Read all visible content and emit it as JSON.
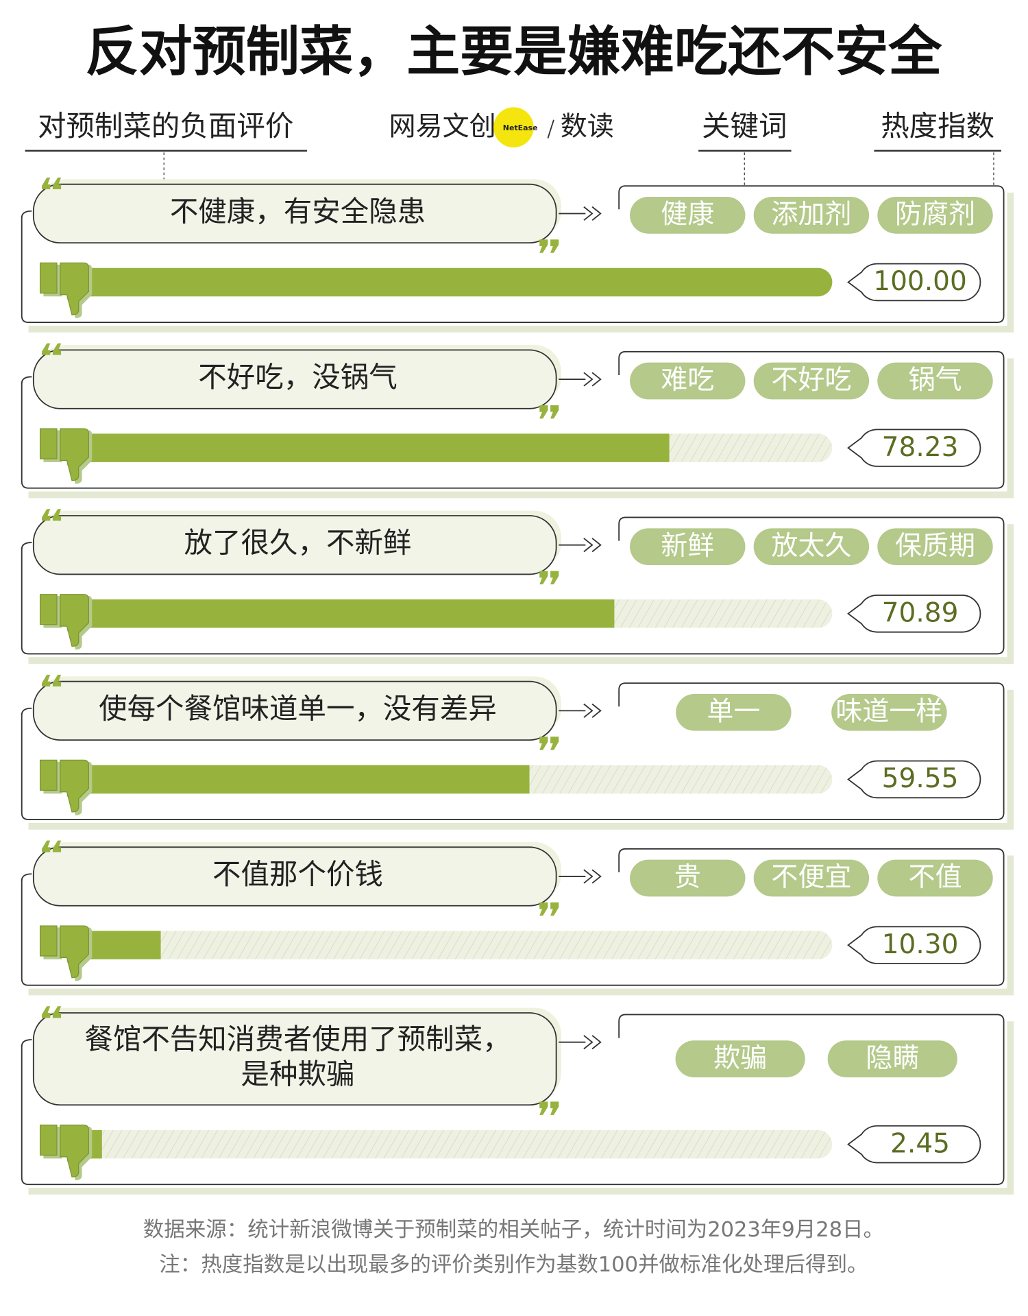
{
  "chart_data": {
    "type": "bar",
    "title": "反对预制菜，主要是嫌难吃还不安全",
    "category_header": "对预制菜的负面评价",
    "brand": "网易文创",
    "brand_badge": "NetEase",
    "brand_sub": "数读",
    "keyword_header": "关键词",
    "value_header": "热度指数",
    "categories": [
      "不健康，有安全隐患",
      "不好吃，没锅气",
      "放了很久，不新鲜",
      "使每个餐馆味道单一，没有差异",
      "不值那个价钱",
      "餐馆不告知消费者使用了预制菜，\n是种欺骗"
    ],
    "keywords": [
      [
        "健康",
        "添加剂",
        "防腐剂"
      ],
      [
        "难吃",
        "不好吃",
        "锅气"
      ],
      [
        "新鲜",
        "放太久",
        "保质期"
      ],
      [
        "单一",
        "味道一样"
      ],
      [
        "贵",
        "不便宜",
        "不值"
      ],
      [
        "欺骗",
        "隐瞒"
      ]
    ],
    "values": [
      100,
      78.23,
      70.89,
      59.55,
      10.3,
      2.45
    ],
    "value_labels": [
      "100.00",
      "78.23",
      "70.89",
      "59.55",
      "10.30",
      "2.45"
    ],
    "xlim": [
      0,
      100
    ],
    "color": "#97b33e",
    "source": "数据来源：统计新浪微博关于预制菜的相关帖子，统计时间为2023年9月28日。",
    "note": "注：热度指数是以出现最多的评价类别作为基数100并做标准化处理后得到。"
  }
}
